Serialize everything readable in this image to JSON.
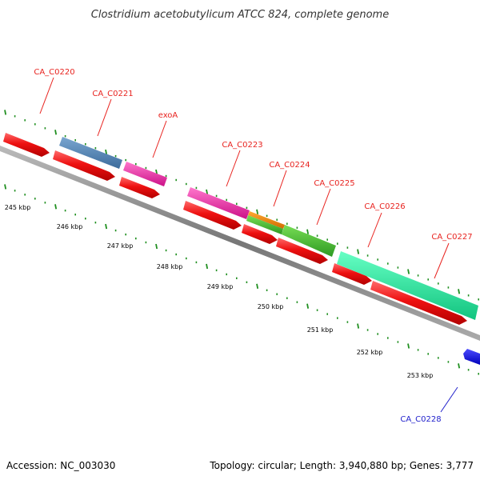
{
  "title": "Clostridium acetobutylicum ATCC 824, complete genome",
  "footer": {
    "accession": "Accession: NC_003030",
    "topology": "Topology: circular; Length: 3,940,880 bp; Genes: 3,777"
  },
  "ruler_labels": [
    "245 kbp",
    "246 kbp",
    "247 kbp",
    "248 kbp",
    "249 kbp",
    "250 kbp",
    "251 kbp",
    "252 kbp",
    "253 kbp"
  ],
  "gene_labels": [
    {
      "id": "CA_C0220",
      "color": "#e8231f"
    },
    {
      "id": "CA_C0221",
      "color": "#e8231f"
    },
    {
      "id": "exoA",
      "color": "#e8231f"
    },
    {
      "id": "CA_C0223",
      "color": "#e8231f"
    },
    {
      "id": "CA_C0224",
      "color": "#e8231f"
    },
    {
      "id": "CA_C0225",
      "color": "#e8231f"
    },
    {
      "id": "CA_C0226",
      "color": "#e8231f"
    },
    {
      "id": "CA_C0227",
      "color": "#e8231f"
    },
    {
      "id": "CA_C0228",
      "color": "#2222cc"
    }
  ],
  "colors": {
    "backbone": "#888888",
    "tick": "#1f8f1f",
    "cds": "#ee1111",
    "blue_feature": "#4a7fb0",
    "pink_feature": "#ee33aa",
    "green_feature": "#44bb33",
    "orange_feature": "#ee8811",
    "mint_feature": "#22eea0",
    "blue_gene": "#1111ee"
  }
}
